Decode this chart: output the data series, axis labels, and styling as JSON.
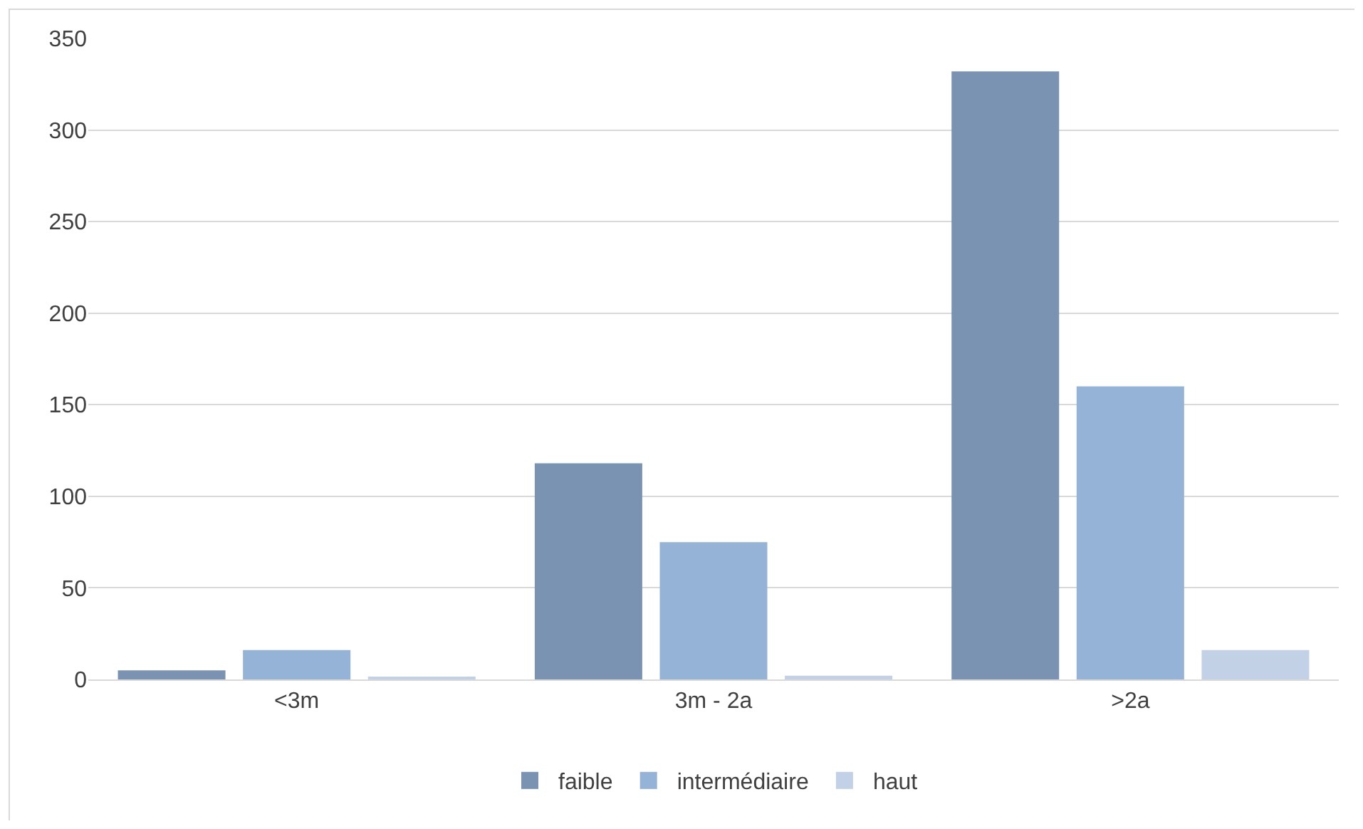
{
  "chart_data": {
    "type": "bar",
    "categories": [
      "<3m",
      "3m - 2a",
      ">2a"
    ],
    "series": [
      {
        "name": "faible",
        "color": "#7a93b2",
        "values": [
          5,
          118,
          332
        ]
      },
      {
        "name": "intermédiaire",
        "color": "#95b3d7",
        "values": [
          16,
          75,
          160
        ]
      },
      {
        "name": "haut",
        "color": "#c3d1e6",
        "values": [
          1,
          2,
          16
        ]
      }
    ],
    "ylim": [
      0,
      350
    ],
    "yticks": [
      0,
      50,
      100,
      150,
      200,
      250,
      300,
      350
    ],
    "grid": "y",
    "legend": "bottom"
  }
}
